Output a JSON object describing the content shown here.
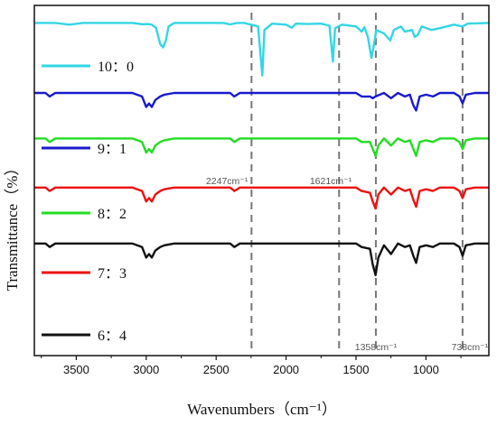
{
  "chart_data": {
    "type": "line",
    "title": "",
    "xlabel": "Wavenumbers（cm⁻¹）",
    "ylabel": "Transmittance（%）",
    "xlim": [
      3800,
      550
    ],
    "x_reversed": true,
    "x_ticks": [
      "3500",
      "3000",
      "2500",
      "2000",
      "1500",
      "1000"
    ],
    "y_ticks_visible": false,
    "grid": false,
    "legend_placement": "left, beside each trace",
    "annotations": [
      {
        "x": 2247,
        "text": "2247cm⁻¹",
        "label_position": "below-left"
      },
      {
        "x": 1621,
        "text": "1621cm⁻¹",
        "label_position": "below-left"
      },
      {
        "x": 1358,
        "text": "1358cm⁻¹",
        "label_position": "bottom"
      },
      {
        "x": 738,
        "text": "738cm⁻¹",
        "label_position": "bottom"
      }
    ],
    "series": [
      {
        "name": "10：0",
        "color": "#33d6e4",
        "points": [
          [
            3800,
            95
          ],
          [
            3650,
            95
          ],
          [
            3550,
            94.5
          ],
          [
            3450,
            95
          ],
          [
            3100,
            95
          ],
          [
            3020,
            94.6
          ],
          [
            2990,
            94.7
          ],
          [
            2960,
            94.5
          ],
          [
            2930,
            93.6
          ],
          [
            2900,
            89
          ],
          [
            2880,
            88
          ],
          [
            2860,
            90
          ],
          [
            2840,
            94
          ],
          [
            2800,
            95
          ],
          [
            2450,
            95
          ],
          [
            2400,
            94.6
          ],
          [
            2350,
            95
          ],
          [
            2300,
            95
          ],
          [
            2200,
            94
          ],
          [
            2170,
            80
          ],
          [
            2155,
            93
          ],
          [
            2100,
            94.8
          ],
          [
            2000,
            94.5
          ],
          [
            1960,
            93.6
          ],
          [
            1930,
            94.8
          ],
          [
            1850,
            94.7
          ],
          [
            1750,
            94.8
          ],
          [
            1690,
            94.2
          ],
          [
            1665,
            84
          ],
          [
            1650,
            93.5
          ],
          [
            1600,
            94.5
          ],
          [
            1500,
            94
          ],
          [
            1460,
            92.5
          ],
          [
            1440,
            93.8
          ],
          [
            1415,
            91
          ],
          [
            1390,
            85
          ],
          [
            1375,
            88
          ],
          [
            1355,
            93
          ],
          [
            1300,
            92
          ],
          [
            1255,
            90
          ],
          [
            1230,
            93
          ],
          [
            1180,
            94
          ],
          [
            1150,
            92.5
          ],
          [
            1100,
            93
          ],
          [
            1080,
            91
          ],
          [
            1060,
            91.5
          ],
          [
            1030,
            94
          ],
          [
            960,
            93
          ],
          [
            900,
            93.5
          ],
          [
            800,
            94.5
          ],
          [
            740,
            94
          ],
          [
            700,
            94.8
          ],
          [
            550,
            95
          ]
        ]
      },
      {
        "name": "9：1",
        "color": "#1a1acc",
        "points": [
          [
            3800,
            75
          ],
          [
            3720,
            75
          ],
          [
            3690,
            74
          ],
          [
            3650,
            75
          ],
          [
            3100,
            75
          ],
          [
            3030,
            74
          ],
          [
            3000,
            71
          ],
          [
            2980,
            72
          ],
          [
            2960,
            71
          ],
          [
            2935,
            73
          ],
          [
            2900,
            74
          ],
          [
            2870,
            74.5
          ],
          [
            2800,
            75
          ],
          [
            2400,
            75
          ],
          [
            2370,
            74
          ],
          [
            2330,
            75
          ],
          [
            2000,
            75
          ],
          [
            1500,
            75
          ],
          [
            1460,
            74
          ],
          [
            1400,
            74
          ],
          [
            1380,
            73.5
          ],
          [
            1360,
            74
          ],
          [
            1300,
            75
          ],
          [
            1250,
            73.5
          ],
          [
            1200,
            75
          ],
          [
            1150,
            74
          ],
          [
            1115,
            74.5
          ],
          [
            1090,
            71.5
          ],
          [
            1070,
            70
          ],
          [
            1045,
            74
          ],
          [
            1000,
            74.5
          ],
          [
            950,
            74
          ],
          [
            900,
            75
          ],
          [
            800,
            75
          ],
          [
            760,
            74
          ],
          [
            738,
            72
          ],
          [
            715,
            74.5
          ],
          [
            650,
            75
          ],
          [
            550,
            75
          ]
        ]
      },
      {
        "name": "8：2",
        "color": "#22dd22",
        "points": [
          [
            3800,
            62
          ],
          [
            3720,
            62
          ],
          [
            3690,
            61
          ],
          [
            3650,
            62
          ],
          [
            3100,
            62
          ],
          [
            3030,
            61
          ],
          [
            3000,
            58
          ],
          [
            2980,
            59
          ],
          [
            2960,
            58
          ],
          [
            2935,
            60
          ],
          [
            2900,
            61
          ],
          [
            2870,
            61.5
          ],
          [
            2800,
            62
          ],
          [
            2400,
            62
          ],
          [
            2370,
            61
          ],
          [
            2330,
            62
          ],
          [
            2000,
            62
          ],
          [
            1500,
            62
          ],
          [
            1460,
            61
          ],
          [
            1400,
            61
          ],
          [
            1380,
            59
          ],
          [
            1360,
            57
          ],
          [
            1340,
            60
          ],
          [
            1300,
            62
          ],
          [
            1250,
            60
          ],
          [
            1200,
            62
          ],
          [
            1150,
            61
          ],
          [
            1115,
            61.5
          ],
          [
            1090,
            59
          ],
          [
            1070,
            57
          ],
          [
            1045,
            61
          ],
          [
            1000,
            61.5
          ],
          [
            950,
            61
          ],
          [
            900,
            62
          ],
          [
            800,
            62
          ],
          [
            760,
            61
          ],
          [
            738,
            59
          ],
          [
            715,
            61.5
          ],
          [
            650,
            62
          ],
          [
            550,
            62
          ]
        ]
      },
      {
        "name": "7：3",
        "color": "#ee1111",
        "points": [
          [
            3800,
            48
          ],
          [
            3720,
            48
          ],
          [
            3690,
            47
          ],
          [
            3650,
            48
          ],
          [
            3100,
            48
          ],
          [
            3030,
            47
          ],
          [
            3000,
            44
          ],
          [
            2980,
            45
          ],
          [
            2960,
            44
          ],
          [
            2935,
            46
          ],
          [
            2900,
            47
          ],
          [
            2870,
            47.5
          ],
          [
            2800,
            48
          ],
          [
            2400,
            48
          ],
          [
            2370,
            47
          ],
          [
            2330,
            48
          ],
          [
            2000,
            48
          ],
          [
            1500,
            48
          ],
          [
            1460,
            47
          ],
          [
            1400,
            46.5
          ],
          [
            1380,
            44
          ],
          [
            1360,
            42
          ],
          [
            1340,
            46
          ],
          [
            1300,
            48
          ],
          [
            1250,
            46
          ],
          [
            1200,
            48
          ],
          [
            1150,
            47
          ],
          [
            1115,
            47.5
          ],
          [
            1090,
            44.5
          ],
          [
            1070,
            42.5
          ],
          [
            1045,
            47
          ],
          [
            1000,
            47.5
          ],
          [
            950,
            47
          ],
          [
            900,
            48
          ],
          [
            800,
            48
          ],
          [
            760,
            47
          ],
          [
            738,
            45
          ],
          [
            715,
            47.5
          ],
          [
            650,
            48
          ],
          [
            550,
            48
          ]
        ]
      },
      {
        "name": "6：4",
        "color": "#111111",
        "points": [
          [
            3800,
            32
          ],
          [
            3720,
            32
          ],
          [
            3690,
            31
          ],
          [
            3650,
            32
          ],
          [
            3100,
            32
          ],
          [
            3030,
            31
          ],
          [
            3000,
            28
          ],
          [
            2980,
            29
          ],
          [
            2960,
            28
          ],
          [
            2935,
            30
          ],
          [
            2900,
            31
          ],
          [
            2870,
            31.5
          ],
          [
            2800,
            32
          ],
          [
            2400,
            32
          ],
          [
            2370,
            31
          ],
          [
            2330,
            32
          ],
          [
            2000,
            32
          ],
          [
            1500,
            32
          ],
          [
            1460,
            31
          ],
          [
            1400,
            30.5
          ],
          [
            1380,
            26
          ],
          [
            1360,
            23
          ],
          [
            1340,
            28
          ],
          [
            1300,
            31.5
          ],
          [
            1250,
            29
          ],
          [
            1200,
            32
          ],
          [
            1150,
            31
          ],
          [
            1115,
            31.5
          ],
          [
            1090,
            28.5
          ],
          [
            1070,
            26.5
          ],
          [
            1045,
            31
          ],
          [
            1000,
            31.5
          ],
          [
            950,
            31
          ],
          [
            900,
            32
          ],
          [
            800,
            32
          ],
          [
            760,
            31
          ],
          [
            738,
            28.5
          ],
          [
            715,
            31.5
          ],
          [
            650,
            32
          ],
          [
            550,
            32
          ]
        ]
      }
    ]
  }
}
